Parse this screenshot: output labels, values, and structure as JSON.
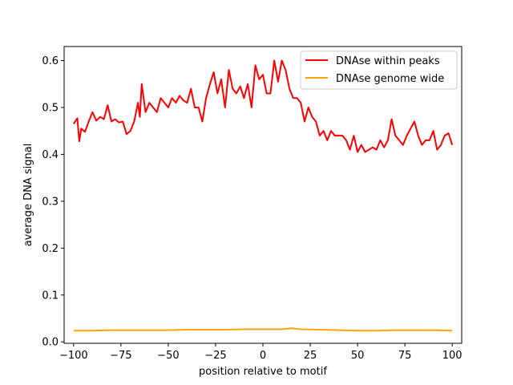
{
  "chart_data": {
    "type": "line",
    "title": "",
    "xlabel": "position relative to motif",
    "ylabel": "average DNA signal",
    "xlim": [
      -105,
      105
    ],
    "ylim": [
      -0.003,
      0.63
    ],
    "x_ticks": [
      -100,
      -75,
      -50,
      -25,
      0,
      25,
      50,
      75,
      100
    ],
    "x_tick_labels": [
      "−100",
      "−75",
      "−50",
      "−25",
      "0",
      "25",
      "50",
      "75",
      "100"
    ],
    "y_ticks": [
      0.0,
      0.1,
      0.2,
      0.3,
      0.4,
      0.5,
      0.6
    ],
    "y_tick_labels": [
      "0.0",
      "0.1",
      "0.2",
      "0.3",
      "0.4",
      "0.5",
      "0.6"
    ],
    "grid": false,
    "legend_position": "top-right",
    "series": [
      {
        "name": "DNAse within peaks",
        "color": "#ff0000",
        "x": [
          -100,
          -98,
          -97,
          -96,
          -94,
          -92,
          -90,
          -88,
          -86,
          -84,
          -82,
          -80,
          -78,
          -76,
          -74,
          -72,
          -70,
          -68,
          -66,
          -65,
          -64,
          -62,
          -60,
          -58,
          -56,
          -54,
          -52,
          -50,
          -48,
          -46,
          -44,
          -42,
          -40,
          -38,
          -36,
          -34,
          -32,
          -30,
          -28,
          -26,
          -24,
          -22,
          -20,
          -18,
          -16,
          -14,
          -12,
          -10,
          -8,
          -6,
          -4,
          -2,
          0,
          2,
          4,
          6,
          8,
          10,
          12,
          14,
          16,
          18,
          20,
          22,
          24,
          26,
          28,
          30,
          32,
          34,
          36,
          38,
          40,
          42,
          44,
          46,
          48,
          50,
          52,
          54,
          56,
          58,
          60,
          62,
          64,
          66,
          68,
          70,
          72,
          74,
          76,
          78,
          80,
          82,
          84,
          86,
          88,
          90,
          92,
          94,
          96,
          98,
          100
        ],
        "values": [
          0.465,
          0.477,
          0.428,
          0.455,
          0.448,
          0.47,
          0.49,
          0.472,
          0.48,
          0.475,
          0.505,
          0.47,
          0.475,
          0.468,
          0.47,
          0.443,
          0.45,
          0.47,
          0.51,
          0.48,
          0.55,
          0.49,
          0.51,
          0.5,
          0.49,
          0.52,
          0.51,
          0.5,
          0.52,
          0.51,
          0.525,
          0.515,
          0.51,
          0.54,
          0.5,
          0.5,
          0.47,
          0.52,
          0.55,
          0.575,
          0.53,
          0.56,
          0.5,
          0.58,
          0.54,
          0.53,
          0.545,
          0.52,
          0.55,
          0.5,
          0.59,
          0.56,
          0.57,
          0.53,
          0.53,
          0.6,
          0.555,
          0.6,
          0.58,
          0.54,
          0.52,
          0.52,
          0.51,
          0.47,
          0.5,
          0.48,
          0.47,
          0.44,
          0.45,
          0.43,
          0.45,
          0.44,
          0.44,
          0.44,
          0.43,
          0.41,
          0.44,
          0.405,
          0.42,
          0.405,
          0.41,
          0.415,
          0.41,
          0.43,
          0.415,
          0.43,
          0.475,
          0.44,
          0.43,
          0.42,
          0.44,
          0.455,
          0.47,
          0.44,
          0.42,
          0.43,
          0.43,
          0.45,
          0.41,
          0.42,
          0.44,
          0.445,
          0.42
        ]
      },
      {
        "name": "DNAse genome wide",
        "color": "#ffa500",
        "x": [
          -100,
          -90,
          -80,
          -70,
          -60,
          -50,
          -40,
          -30,
          -20,
          -10,
          0,
          10,
          15,
          20,
          30,
          40,
          50,
          60,
          70,
          80,
          90,
          100
        ],
        "values": [
          0.024,
          0.024,
          0.025,
          0.025,
          0.025,
          0.025,
          0.026,
          0.026,
          0.026,
          0.027,
          0.027,
          0.027,
          0.029,
          0.027,
          0.026,
          0.025,
          0.024,
          0.024,
          0.025,
          0.025,
          0.025,
          0.024
        ]
      }
    ]
  }
}
